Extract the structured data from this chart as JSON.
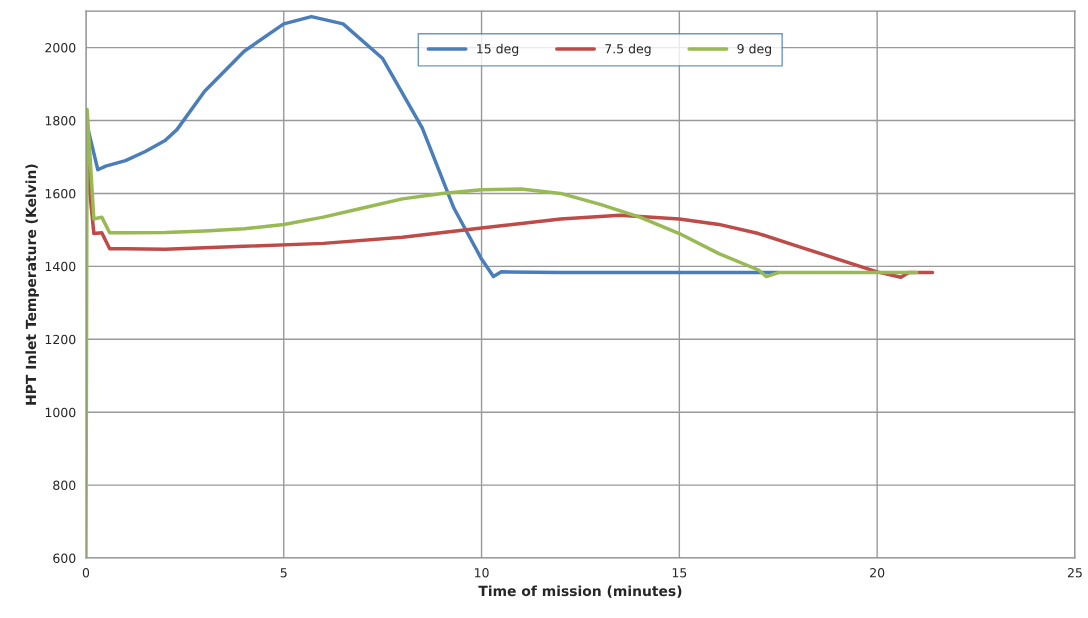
{
  "chart_data": {
    "type": "line",
    "xlabel": "Time of mission (minutes)",
    "ylabel": "HPT Inlet Temperature (Kelvin)",
    "xlim": [
      0,
      25
    ],
    "xticks": [
      0,
      5,
      10,
      15,
      20,
      25
    ],
    "ylim": [
      600,
      2100
    ],
    "yticks": [
      600,
      800,
      1000,
      1200,
      1400,
      1600,
      1800,
      2000
    ],
    "grid": true,
    "legend": "top",
    "marker": "none",
    "line_style": "solid",
    "series": [
      {
        "name": "15 deg",
        "color": "#4a7ebb",
        "x": [
          0,
          0.3,
          0.5,
          1,
          1.5,
          2,
          2.3,
          3,
          4,
          5,
          5.7,
          6.5,
          7.5,
          8.5,
          9.3,
          10,
          10.3,
          10.5,
          12,
          17.5
        ],
        "values": [
          1800,
          1665,
          1675,
          1690,
          1715,
          1745,
          1775,
          1880,
          1990,
          2065,
          2085,
          2065,
          1970,
          1780,
          1560,
          1420,
          1372,
          1385,
          1383,
          1383
        ]
      },
      {
        "name": "7.5 deg",
        "color": "#be4b48",
        "x": [
          0,
          0.1,
          0.2,
          0.4,
          0.6,
          1,
          2,
          4,
          6,
          8,
          10,
          12,
          13.5,
          15,
          16,
          17,
          18,
          19,
          20,
          20.6,
          20.8,
          21.4
        ],
        "values": [
          1830,
          1600,
          1490,
          1492,
          1448,
          1448,
          1447,
          1455,
          1463,
          1480,
          1505,
          1530,
          1540,
          1530,
          1515,
          1490,
          1455,
          1420,
          1385,
          1370,
          1383,
          1383
        ]
      },
      {
        "name": "9 deg",
        "color": "#98b954",
        "x": [
          0,
          0.03,
          0.2,
          0.4,
          0.6,
          1,
          2,
          3,
          4,
          5,
          6,
          7,
          8,
          9,
          10,
          11,
          12,
          13,
          14,
          15,
          16,
          17,
          17.2,
          17.5,
          21
        ],
        "values": [
          600,
          1830,
          1530,
          1535,
          1492,
          1492,
          1493,
          1497,
          1503,
          1515,
          1535,
          1560,
          1585,
          1600,
          1610,
          1612,
          1600,
          1570,
          1535,
          1490,
          1435,
          1390,
          1372,
          1383,
          1383
        ]
      }
    ]
  }
}
